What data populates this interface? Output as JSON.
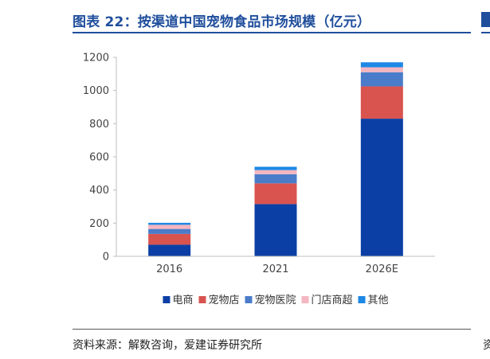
{
  "header": {
    "title": "图表 22：按渠道中国宠物食品市场规模（亿元）"
  },
  "footer": {
    "source": "资料来源：解数咨询，爱建证券研究所",
    "edge_char": "资"
  },
  "chart_data": {
    "type": "bar",
    "stacked": true,
    "categories": [
      "2016",
      "2021",
      "2026E"
    ],
    "series": [
      {
        "name": "电商",
        "color": "#0b3fa5",
        "values": [
          70,
          315,
          830
        ]
      },
      {
        "name": "宠物店",
        "color": "#d9534f",
        "values": [
          65,
          125,
          195
        ]
      },
      {
        "name": "宠物医院",
        "color": "#4a7cc9",
        "values": [
          30,
          55,
          85
        ]
      },
      {
        "name": "门店商超",
        "color": "#f4b6c0",
        "values": [
          25,
          25,
          30
        ]
      },
      {
        "name": "其他",
        "color": "#1e88e5",
        "values": [
          12,
          20,
          30
        ]
      }
    ],
    "yticks": [
      0,
      200,
      400,
      600,
      800,
      1000,
      1200
    ],
    "ylim": [
      0,
      1200
    ],
    "grid": false,
    "legend_position": "bottom"
  }
}
